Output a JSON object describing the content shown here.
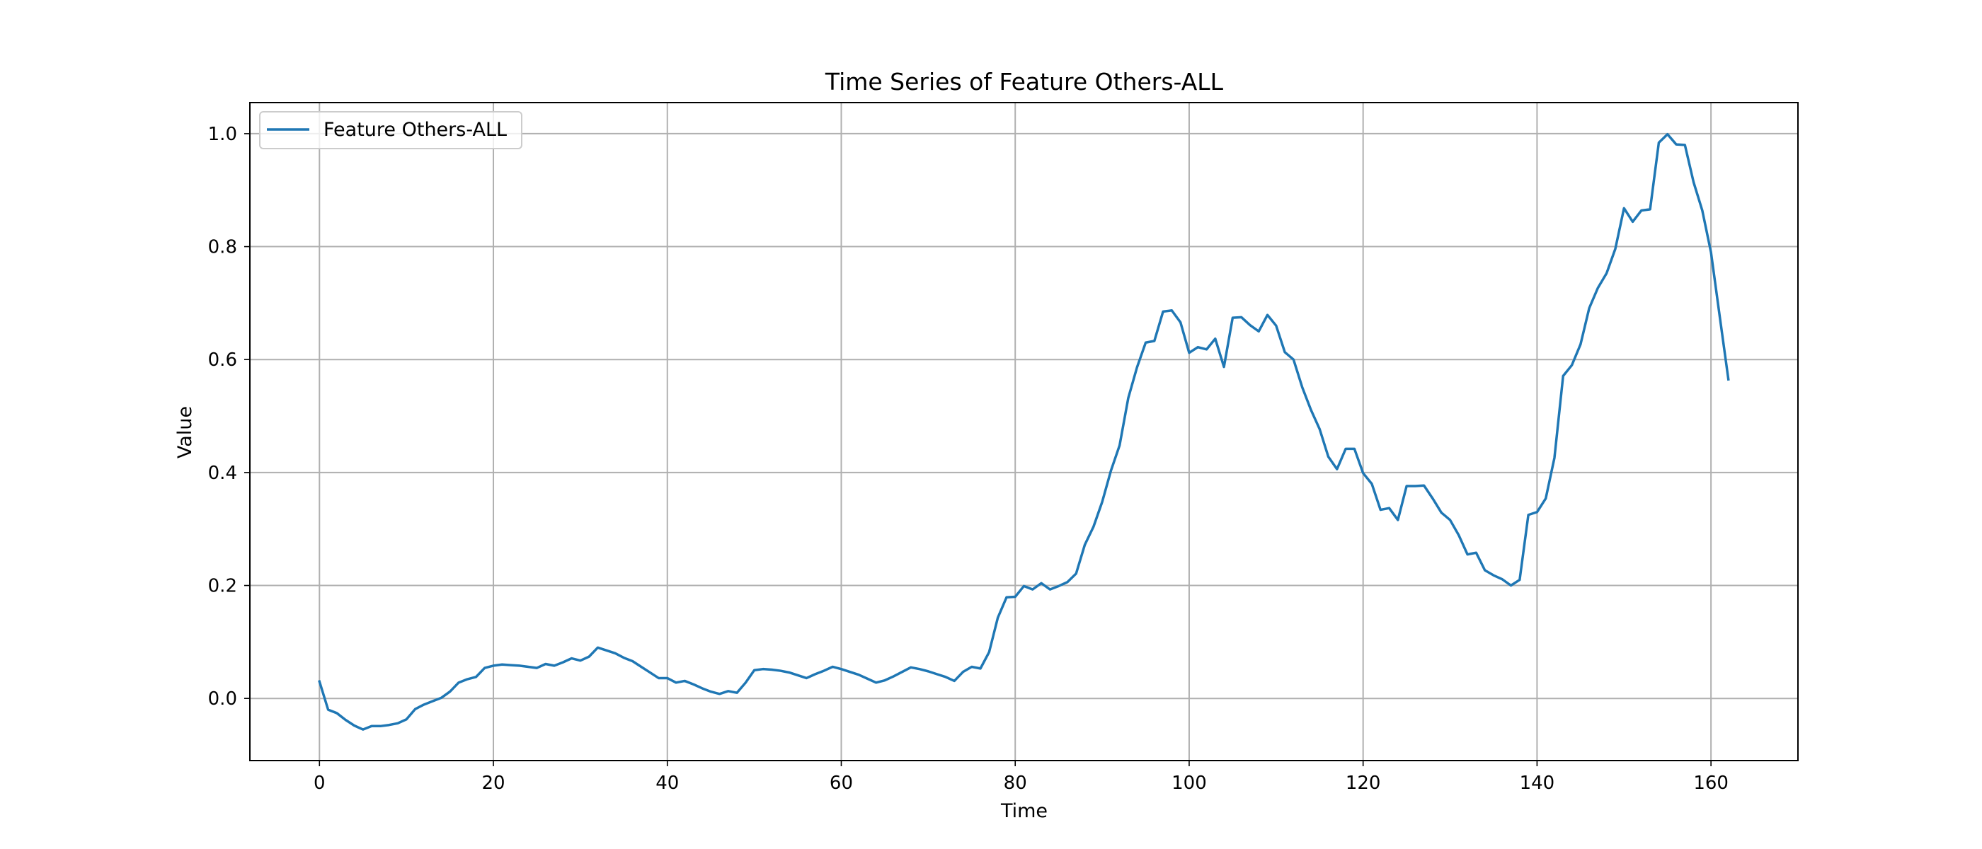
{
  "chart_data": {
    "type": "line",
    "title": "Time Series of Feature Others-ALL",
    "xlabel": "Time",
    "ylabel": "Value",
    "xlim": [
      -8,
      170
    ],
    "ylim": [
      -0.11,
      1.055
    ],
    "xticks": [
      0,
      20,
      40,
      60,
      80,
      100,
      120,
      140,
      160
    ],
    "xtick_labels": [
      "0",
      "20",
      "40",
      "60",
      "80",
      "100",
      "120",
      "140",
      "160"
    ],
    "yticks": [
      0.0,
      0.2,
      0.4,
      0.6,
      0.8,
      1.0
    ],
    "ytick_labels": [
      "0.0",
      "0.2",
      "0.4",
      "0.6",
      "0.8",
      "1.0"
    ],
    "grid": true,
    "legend_position": "upper-left",
    "series": [
      {
        "name": "Feature Others-ALL",
        "color": "#1f77b4",
        "x": [
          0,
          1,
          2,
          3,
          4,
          5,
          6,
          7,
          8,
          9,
          10,
          11,
          12,
          13,
          14,
          15,
          16,
          17,
          18,
          19,
          20,
          21,
          22,
          23,
          24,
          25,
          26,
          27,
          28,
          29,
          30,
          31,
          32,
          33,
          34,
          35,
          36,
          37,
          38,
          39,
          40,
          41,
          42,
          43,
          44,
          45,
          46,
          47,
          48,
          49,
          50,
          51,
          52,
          53,
          54,
          55,
          56,
          57,
          58,
          59,
          60,
          61,
          62,
          63,
          64,
          65,
          66,
          67,
          68,
          69,
          70,
          71,
          72,
          73,
          74,
          75,
          76,
          77,
          78,
          79,
          80,
          81,
          82,
          83,
          84,
          85,
          86,
          87,
          88,
          89,
          90,
          91,
          92,
          93,
          94,
          95,
          96,
          97,
          98,
          99,
          100,
          101,
          102,
          103,
          104,
          105,
          106,
          107,
          108,
          109,
          110,
          111,
          112,
          113,
          114,
          115,
          116,
          117,
          118,
          119,
          120,
          121,
          122,
          123,
          124,
          125,
          126,
          127,
          128,
          129,
          130,
          131,
          132,
          133,
          134,
          135,
          136,
          137,
          138,
          139,
          140,
          141,
          142,
          143,
          144,
          145,
          146,
          147,
          148,
          149,
          150,
          151,
          152,
          153,
          154,
          155,
          156,
          157,
          158,
          159,
          160,
          161,
          162
        ],
        "values": [
          0.03,
          -0.02,
          -0.026,
          -0.038,
          -0.048,
          -0.055,
          -0.049,
          -0.049,
          -0.047,
          -0.044,
          -0.037,
          -0.019,
          -0.011,
          -0.005,
          0.001,
          0.012,
          0.028,
          0.034,
          0.038,
          0.054,
          0.058,
          0.06,
          0.059,
          0.058,
          0.056,
          0.054,
          0.061,
          0.058,
          0.064,
          0.071,
          0.067,
          0.074,
          0.09,
          0.085,
          0.08,
          0.072,
          0.066,
          0.056,
          0.046,
          0.036,
          0.036,
          0.028,
          0.031,
          0.025,
          0.018,
          0.012,
          0.008,
          0.013,
          0.01,
          0.028,
          0.05,
          0.052,
          0.051,
          0.049,
          0.046,
          0.041,
          0.036,
          0.043,
          0.049,
          0.056,
          0.052,
          0.047,
          0.042,
          0.035,
          0.028,
          0.032,
          0.039,
          0.047,
          0.055,
          0.052,
          0.048,
          0.043,
          0.038,
          0.031,
          0.047,
          0.056,
          0.053,
          0.082,
          0.143,
          0.179,
          0.18,
          0.199,
          0.193,
          0.204,
          0.193,
          0.199,
          0.206,
          0.221,
          0.272,
          0.304,
          0.348,
          0.403,
          0.448,
          0.532,
          0.586,
          0.63,
          0.633,
          0.685,
          0.687,
          0.666,
          0.612,
          0.622,
          0.618,
          0.637,
          0.587,
          0.674,
          0.675,
          0.661,
          0.65,
          0.679,
          0.66,
          0.613,
          0.6,
          0.551,
          0.511,
          0.477,
          0.428,
          0.406,
          0.442,
          0.442,
          0.399,
          0.38,
          0.334,
          0.337,
          0.316,
          0.376,
          0.376,
          0.377,
          0.354,
          0.329,
          0.316,
          0.289,
          0.255,
          0.258,
          0.227,
          0.218,
          0.211,
          0.2,
          0.21,
          0.325,
          0.33,
          0.354,
          0.426,
          0.571,
          0.59,
          0.627,
          0.691,
          0.727,
          0.753,
          0.796,
          0.868,
          0.844,
          0.864,
          0.866,
          0.984,
          0.999,
          0.981,
          0.98,
          0.914,
          0.864,
          0.79,
          0.677,
          0.565
        ]
      }
    ]
  }
}
